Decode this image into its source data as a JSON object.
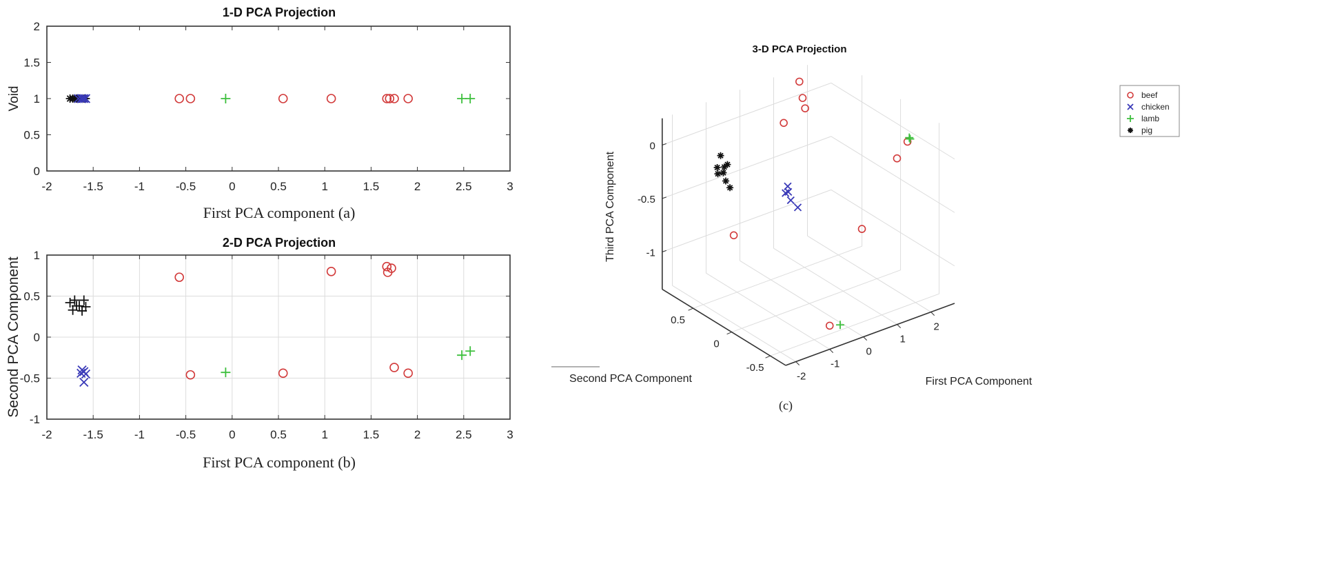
{
  "colors": {
    "beef": "#d23a3a",
    "chicken": "#3a3ab8",
    "lamb": "#3cbf3c",
    "pig": "#111111",
    "grid": "#dcdcdc",
    "axis": "#333333"
  },
  "chart_data": [
    {
      "type": "scatter",
      "title": "1-D PCA Projection",
      "xlabel": "First PCA component  (a)",
      "ylabel": "Void",
      "xlim": [
        -2,
        3
      ],
      "ylim": [
        0,
        2
      ],
      "xticks": [
        "-2",
        "-1.5",
        "-1",
        "-0.5",
        "0",
        "0.5",
        "1",
        "1.5",
        "2",
        "2.5",
        "3"
      ],
      "yticks": [
        "0",
        "0.5",
        "1",
        "1.5",
        "2"
      ],
      "grid": false,
      "series": [
        {
          "name": "pig",
          "marker": "asterisk",
          "x": [
            -1.75,
            -1.72,
            -1.7,
            -1.68,
            -1.65,
            -1.62,
            -1.6,
            -1.58
          ],
          "y": [
            1,
            1,
            1,
            1,
            1,
            1,
            1,
            1
          ]
        },
        {
          "name": "chicken",
          "marker": "x",
          "x": [
            -1.66,
            -1.63,
            -1.62,
            -1.6,
            -1.58
          ],
          "y": [
            1,
            1,
            1,
            1,
            1
          ]
        },
        {
          "name": "beef",
          "marker": "circle",
          "x": [
            -0.57,
            -0.45,
            0.55,
            1.07,
            1.67,
            1.7,
            1.75,
            1.9
          ],
          "y": [
            1,
            1,
            1,
            1,
            1,
            1,
            1,
            1
          ]
        },
        {
          "name": "lamb",
          "marker": "plus",
          "x": [
            -0.07,
            2.48,
            2.57
          ],
          "y": [
            1,
            1,
            1
          ]
        }
      ]
    },
    {
      "type": "scatter",
      "title": "2-D PCA Projection",
      "xlabel": "First PCA component  (b)",
      "ylabel": "Second PCA Component",
      "xlim": [
        -2,
        3
      ],
      "ylim": [
        -1,
        1
      ],
      "xticks": [
        "-2",
        "-1.5",
        "-1",
        "-0.5",
        "0",
        "0.5",
        "1",
        "1.5",
        "2",
        "2.5",
        "3"
      ],
      "yticks": [
        "-1",
        "-0.5",
        "0",
        "0.5",
        "1"
      ],
      "grid": true,
      "series": [
        {
          "name": "pig",
          "marker": "plus",
          "x": [
            -1.75,
            -1.7,
            -1.72,
            -1.65,
            -1.6,
            -1.58,
            -1.62,
            -1.68
          ],
          "y": [
            0.42,
            0.45,
            0.33,
            0.38,
            0.45,
            0.37,
            0.32,
            0.38
          ]
        },
        {
          "name": "chicken",
          "marker": "x",
          "x": [
            -1.6,
            -1.62,
            -1.58,
            -1.6,
            -1.63
          ],
          "y": [
            -0.42,
            -0.4,
            -0.45,
            -0.55,
            -0.44
          ]
        },
        {
          "name": "beef",
          "marker": "circle",
          "x": [
            -0.57,
            -0.45,
            0.55,
            1.07,
            1.67,
            1.72,
            1.68,
            1.75,
            1.9
          ],
          "y": [
            0.73,
            -0.46,
            -0.44,
            0.8,
            0.86,
            0.84,
            0.79,
            -0.37,
            -0.44
          ]
        },
        {
          "name": "lamb",
          "marker": "plus",
          "x": [
            -0.07,
            2.48,
            2.57
          ],
          "y": [
            -0.43,
            -0.22,
            -0.17
          ]
        }
      ]
    },
    {
      "type": "scatter3d",
      "title": "3-D PCA Projection",
      "xlabel": "First PCA Component",
      "ylabel": "Second PCA Component",
      "zlabel": "Third PCA Component",
      "caption": "(c)",
      "xlim": [
        -2.3,
        2.7
      ],
      "ylim": [
        -0.7,
        0.9
      ],
      "zlim": [
        -1.35,
        0.25
      ],
      "xticks": [
        -2,
        -1,
        0,
        1,
        2
      ],
      "yticks": [
        -0.5,
        0,
        0.5
      ],
      "zticks": [
        -1,
        -0.5,
        0
      ],
      "xtick_labels": [
        "-2",
        "-1",
        "0",
        "1",
        "2"
      ],
      "ytick_labels": [
        "-0.5",
        "0",
        "0.5"
      ],
      "ztick_labels": [
        "-1",
        "-0.5",
        "0"
      ],
      "grid": true,
      "legend": {
        "position": "top-right",
        "entries": [
          "beef",
          "chicken",
          "lamb",
          "pig"
        ],
        "markers": [
          "circle",
          "x",
          "plus",
          "asterisk"
        ]
      },
      "series": [
        {
          "name": "beef",
          "marker": "circle",
          "x": [
            -0.57,
            -0.45,
            0.55,
            1.07,
            1.67,
            1.72,
            1.68,
            1.75,
            1.9
          ],
          "y": [
            0.73,
            -0.46,
            -0.44,
            0.8,
            0.86,
            0.84,
            0.79,
            -0.37,
            -0.44
          ],
          "z": [
            -0.97,
            -1.3,
            -0.52,
            -0.14,
            0.15,
            0.0,
            -0.07,
            -0.03,
            0.14
          ]
        },
        {
          "name": "chicken",
          "marker": "x",
          "x": [
            -1.6,
            -1.62,
            -1.58,
            -1.6,
            -1.63
          ],
          "y": [
            -0.42,
            -0.4,
            -0.45,
            -0.55,
            -0.44
          ],
          "z": [
            0.12,
            0.05,
            0.0,
            -0.02,
            0.08
          ]
        },
        {
          "name": "lamb",
          "marker": "plus",
          "x": [
            -0.07,
            2.48,
            2.57
          ],
          "y": [
            -0.43,
            -0.22,
            -0.17
          ],
          "z": [
            -1.35,
            0.0,
            -0.02
          ]
        },
        {
          "name": "pig",
          "marker": "asterisk",
          "x": [
            -1.75,
            -1.7,
            -1.72,
            -1.65,
            -1.6,
            -1.58,
            -1.62,
            -1.68
          ],
          "y": [
            0.42,
            0.45,
            0.33,
            0.38,
            0.45,
            0.37,
            0.32,
            0.38
          ],
          "z": [
            -0.12,
            -0.08,
            -0.15,
            -0.05,
            0.02,
            -0.03,
            -0.22,
            -0.1
          ]
        }
      ]
    }
  ]
}
